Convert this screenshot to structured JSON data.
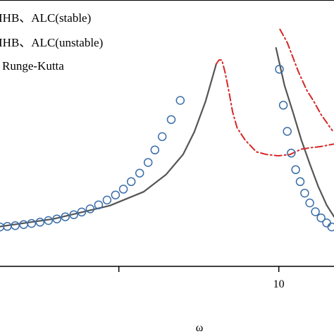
{
  "chart_data": {
    "type": "line",
    "title": "",
    "xlabel": "ω",
    "ylabel": "",
    "xlim": [
      5.05,
      10.98
    ],
    "ylim": [
      0.0,
      1.0
    ],
    "x_ticks": [
      {
        "value": 7.16,
        "label": ""
      },
      {
        "value": 10,
        "label": "10"
      }
    ],
    "legend": {
      "placement": "top-left",
      "entries": [
        {
          "label": "IHB、ALC(stable)",
          "style": "solid",
          "color": "#555555"
        },
        {
          "label": "IHB、ALC(unstable)",
          "style": "dash-dot",
          "color": "#d62728"
        },
        {
          "label": "Runge-Kutta",
          "style": "circle-marker",
          "color": "#3b6ea8"
        }
      ]
    },
    "series": [
      {
        "style": "solid",
        "color": "#555555",
        "segments": [
          [
            [
              5.0,
              0.148
            ],
            [
              6.0,
              0.178
            ],
            [
              7.0,
              0.228
            ],
            [
              7.6,
              0.28
            ],
            [
              8.0,
              0.345
            ],
            [
              8.3,
              0.42
            ],
            [
              8.5,
              0.505
            ],
            [
              8.7,
              0.62
            ],
            [
              8.85,
              0.73
            ],
            [
              8.89,
              0.76
            ]
          ],
          [
            [
              9.95,
              0.82
            ],
            [
              10.1,
              0.68
            ],
            [
              10.25,
              0.58
            ],
            [
              10.4,
              0.475
            ],
            [
              10.55,
              0.385
            ],
            [
              10.7,
              0.3
            ],
            [
              10.85,
              0.23
            ],
            [
              11.0,
              0.18
            ]
          ]
        ]
      },
      {
        "style": "dash-dot",
        "color": "#d62728",
        "segments": [
          [
            [
              8.89,
              0.76
            ],
            [
              8.94,
              0.775
            ],
            [
              8.99,
              0.775
            ],
            [
              9.05,
              0.725
            ],
            [
              9.12,
              0.65
            ],
            [
              9.18,
              0.58
            ],
            [
              9.26,
              0.52
            ],
            [
              9.4,
              0.475
            ],
            [
              9.6,
              0.43
            ],
            [
              9.78,
              0.42
            ],
            [
              9.99,
              0.415
            ],
            [
              10.2,
              0.42
            ],
            [
              10.4,
              0.44
            ],
            [
              10.55,
              0.445
            ],
            [
              10.75,
              0.45
            ],
            [
              11.0,
              0.46
            ]
          ],
          [
            [
              10.02,
              0.89
            ],
            [
              10.15,
              0.84
            ],
            [
              10.35,
              0.73
            ],
            [
              10.5,
              0.66
            ],
            [
              10.62,
              0.62
            ],
            [
              10.75,
              0.57
            ],
            [
              10.95,
              0.51
            ]
          ]
        ]
      }
    ],
    "runge_kutta_points": [
      {
        "x": 5.05,
        "y": 0.148
      },
      {
        "x": 5.18,
        "y": 0.15
      },
      {
        "x": 5.32,
        "y": 0.153
      },
      {
        "x": 5.47,
        "y": 0.157
      },
      {
        "x": 5.61,
        "y": 0.161
      },
      {
        "x": 5.76,
        "y": 0.166
      },
      {
        "x": 5.91,
        "y": 0.172
      },
      {
        "x": 6.06,
        "y": 0.178
      },
      {
        "x": 6.21,
        "y": 0.186
      },
      {
        "x": 6.36,
        "y": 0.194
      },
      {
        "x": 6.5,
        "y": 0.204
      },
      {
        "x": 6.65,
        "y": 0.216
      },
      {
        "x": 6.8,
        "y": 0.231
      },
      {
        "x": 6.95,
        "y": 0.249
      },
      {
        "x": 7.1,
        "y": 0.268
      },
      {
        "x": 7.24,
        "y": 0.29
      },
      {
        "x": 7.38,
        "y": 0.318
      },
      {
        "x": 7.53,
        "y": 0.35
      },
      {
        "x": 7.68,
        "y": 0.39
      },
      {
        "x": 7.8,
        "y": 0.437
      },
      {
        "x": 7.93,
        "y": 0.487
      },
      {
        "x": 8.09,
        "y": 0.551
      },
      {
        "x": 8.25,
        "y": 0.623
      },
      {
        "x": 10.01,
        "y": 0.74
      },
      {
        "x": 10.08,
        "y": 0.605
      },
      {
        "x": 10.15,
        "y": 0.507
      },
      {
        "x": 10.22,
        "y": 0.425
      },
      {
        "x": 10.3,
        "y": 0.363
      },
      {
        "x": 10.38,
        "y": 0.318
      },
      {
        "x": 10.46,
        "y": 0.275
      },
      {
        "x": 10.55,
        "y": 0.238
      },
      {
        "x": 10.65,
        "y": 0.205
      },
      {
        "x": 10.75,
        "y": 0.182
      },
      {
        "x": 10.85,
        "y": 0.163
      },
      {
        "x": 10.94,
        "y": 0.148
      }
    ]
  }
}
